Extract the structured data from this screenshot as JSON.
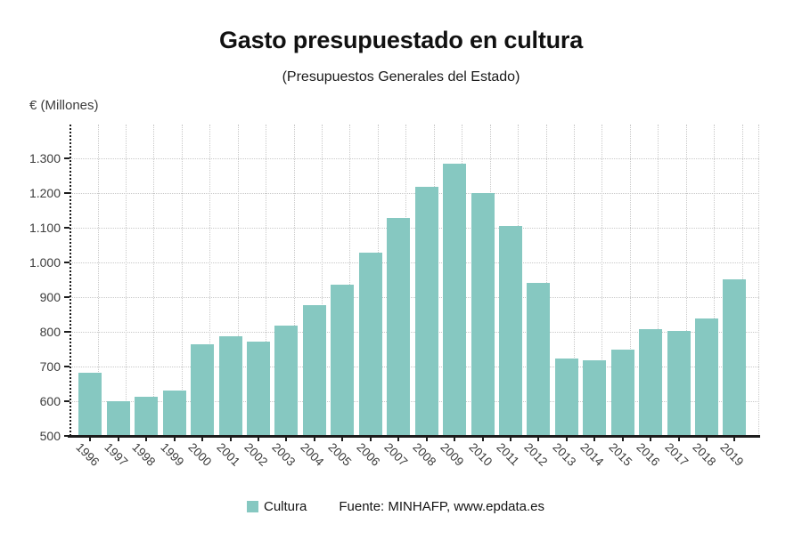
{
  "header": {
    "title": "Gasto presupuestado en cultura",
    "subtitle": "(Presupuestos Generales del Estado)"
  },
  "axis": {
    "y_unit_label": "€ (Millones)"
  },
  "footer": {
    "legend_label": "Cultura",
    "source": "Fuente: MINHAFP, www.epdata.es"
  },
  "colors": {
    "bar": "#86c8c1",
    "grid": "#c9c9c9",
    "axis": "#1c1c1c",
    "tick_text": "#3c3c3c"
  },
  "chart_data": {
    "type": "bar",
    "title": "Gasto presupuestado en cultura",
    "subtitle": "(Presupuestos Generales del Estado)",
    "ylabel": "€ (Millones)",
    "series_name": "Cultura",
    "categories": [
      "1996",
      "1997",
      "1998",
      "1999",
      "2000",
      "2001",
      "2002",
      "2003",
      "2004",
      "2005",
      "2006",
      "2007",
      "2008",
      "2009",
      "2010",
      "2011",
      "2012",
      "2013",
      "2014",
      "2015",
      "2016",
      "2017",
      "2018",
      "2019"
    ],
    "values": [
      683,
      600,
      613,
      632,
      763,
      786,
      771,
      818,
      876,
      936,
      1029,
      1128,
      1219,
      1284,
      1199,
      1104,
      942,
      722,
      718,
      749,
      808,
      803,
      838,
      952
    ],
    "ylim": [
      500,
      1397
    ],
    "yticks": [
      500,
      600,
      700,
      800,
      900,
      1000,
      1100,
      1200,
      1300
    ],
    "ytick_labels": [
      "500",
      "600",
      "700",
      "800",
      "900",
      "1.000",
      "1.100",
      "1.200",
      "1.300"
    ],
    "grid": true,
    "legend_position": "bottom",
    "source": "Fuente: MINHAFP, www.epdata.es"
  }
}
